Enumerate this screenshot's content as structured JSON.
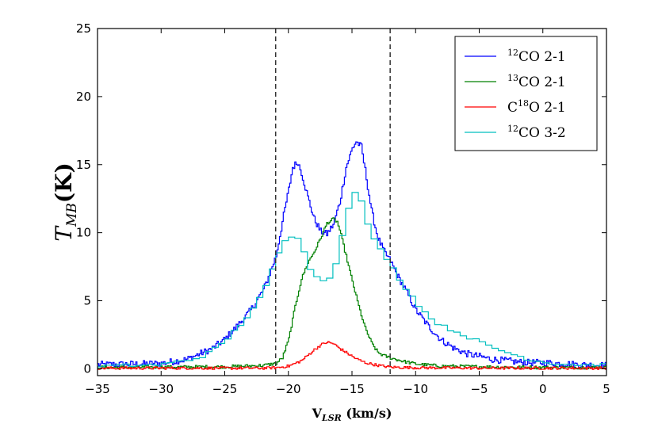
{
  "chart_data": {
    "type": "line",
    "title": "",
    "xlabel": {
      "main": "V",
      "sub": "LSR",
      "unit": " (km/s)"
    },
    "ylabel": {
      "main": "T",
      "sub": "MB",
      "unit": "(K)"
    },
    "xlim": [
      -35,
      5
    ],
    "ylim": [
      -0.5,
      25
    ],
    "xticks": [
      -35,
      -30,
      -25,
      -20,
      -15,
      -10,
      -5,
      0,
      5
    ],
    "yticks": [
      0,
      5,
      10,
      15,
      20,
      25
    ],
    "xtick_labels": [
      "−35",
      "−30",
      "−25",
      "−20",
      "−15",
      "−10",
      "−5",
      "0",
      "5"
    ],
    "ytick_labels": [
      "0",
      "5",
      "10",
      "15",
      "20",
      "25"
    ],
    "vlines": [
      -21,
      -12
    ],
    "legend_position": "top-right",
    "series": [
      {
        "name": "12CO 2-1",
        "label_sup": "12",
        "label_main": "CO 2-1",
        "color": "#0000ff",
        "step": false,
        "noise": 0.25,
        "x": [
          -35,
          -32,
          -30,
          -28,
          -26,
          -25,
          -24,
          -23,
          -22,
          -21.5,
          -21,
          -20.5,
          -20,
          -19.7,
          -19.3,
          -19,
          -18.5,
          -18,
          -17.5,
          -17,
          -16.5,
          -16,
          -15.5,
          -15,
          -14.7,
          -14.3,
          -14,
          -13.5,
          -13,
          -12.5,
          -12,
          -11.5,
          -11,
          -10.5,
          -10,
          -9,
          -8,
          -7,
          -6,
          -5,
          -4,
          -3,
          -2,
          -1,
          0,
          1,
          2,
          3,
          5
        ],
        "y": [
          0.3,
          0.35,
          0.4,
          0.7,
          1.5,
          2.2,
          3.2,
          4.3,
          5.8,
          7.0,
          8.3,
          10.8,
          13.2,
          14.8,
          15.2,
          14.4,
          12.6,
          11.0,
          10.1,
          9.9,
          10.6,
          12.2,
          14.8,
          16.2,
          16.7,
          16.3,
          14.6,
          11.6,
          9.6,
          8.6,
          7.9,
          6.9,
          6.1,
          5.2,
          4.3,
          3.1,
          2.1,
          1.5,
          1.1,
          0.9,
          0.7,
          0.6,
          0.5,
          0.45,
          0.45,
          0.4,
          0.35,
          0.3,
          0.25
        ]
      },
      {
        "name": "13CO 2-1",
        "label_sup": "13",
        "label_main": "CO 2-1",
        "color": "#008000",
        "step": false,
        "noise": 0.12,
        "x": [
          -35,
          -25,
          -22,
          -21,
          -20.5,
          -20,
          -19.5,
          -19,
          -18.5,
          -18,
          -17.5,
          -17,
          -16.5,
          -16.2,
          -16,
          -15.5,
          -15,
          -14.5,
          -14,
          -13.5,
          -13,
          -12.5,
          -12,
          -11,
          -10,
          -8,
          -5,
          0,
          5
        ],
        "y": [
          0.1,
          0.15,
          0.25,
          0.4,
          0.8,
          2.2,
          4.6,
          6.6,
          7.8,
          8.6,
          9.6,
          10.7,
          11.0,
          10.8,
          10.2,
          8.3,
          6.4,
          4.6,
          3.0,
          1.9,
          1.2,
          0.95,
          0.8,
          0.55,
          0.35,
          0.2,
          0.15,
          0.1,
          0.1
        ]
      },
      {
        "name": "C18O 2-1",
        "label_pre": "C",
        "label_sup": "18",
        "label_main": "O 2-1",
        "color": "#ff0000",
        "step": false,
        "noise": 0.1,
        "x": [
          -35,
          -22,
          -21,
          -20,
          -19,
          -18.5,
          -18,
          -17.5,
          -17,
          -16.5,
          -16,
          -15.5,
          -15,
          -14.5,
          -14,
          -13,
          -12,
          -10,
          -5,
          0,
          5
        ],
        "y": [
          0.05,
          0.05,
          0.08,
          0.2,
          0.6,
          1.0,
          1.4,
          1.75,
          1.95,
          1.85,
          1.5,
          1.2,
          0.9,
          0.65,
          0.45,
          0.25,
          0.12,
          0.08,
          0.05,
          0.05,
          0.05
        ]
      },
      {
        "name": "12CO 3-2",
        "label_sup": "12",
        "label_main": "CO 3-2",
        "color": "#00bfbf",
        "step": true,
        "noise": 0.12,
        "x": [
          -35,
          -30,
          -27,
          -26,
          -25,
          -24,
          -23,
          -22,
          -21.5,
          -21,
          -20.5,
          -20,
          -19.5,
          -19,
          -18.5,
          -18,
          -17.5,
          -17,
          -16.5,
          -16,
          -15.5,
          -15,
          -14.5,
          -14,
          -13.5,
          -13,
          -12.5,
          -12,
          -11.5,
          -11,
          -10.5,
          -10,
          -9.5,
          -9,
          -8.5,
          -8,
          -7.5,
          -7,
          -6.5,
          -6,
          -5.5,
          -5,
          -4.5,
          -4,
          -3.5,
          -3,
          -2.5,
          -2,
          -1.5,
          -1,
          -0.5,
          0,
          1,
          2,
          3,
          4,
          5
        ],
        "y": [
          0.2,
          0.3,
          0.8,
          1.3,
          2.0,
          3.0,
          4.1,
          5.5,
          6.6,
          7.9,
          9.2,
          9.5,
          10.0,
          9.4,
          8.0,
          6.8,
          6.6,
          6.5,
          6.8,
          8.8,
          11.0,
          12.8,
          13.0,
          11.5,
          9.9,
          9.0,
          8.5,
          7.8,
          6.9,
          6.3,
          5.6,
          5.0,
          4.4,
          3.9,
          3.5,
          3.2,
          3.0,
          2.8,
          2.6,
          2.4,
          2.2,
          2.0,
          1.8,
          1.6,
          1.4,
          1.3,
          1.1,
          1.0,
          0.8,
          0.7,
          0.6,
          0.5,
          0.4,
          0.35,
          0.3,
          0.3,
          0.3
        ]
      }
    ]
  }
}
